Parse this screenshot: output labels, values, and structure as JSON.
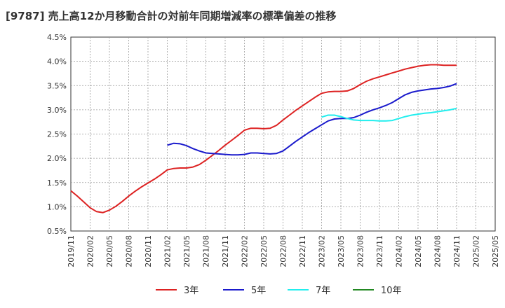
{
  "chart_data": {
    "type": "line",
    "title": "[9787]  売上高12か月移動合計の対前年同期増減率の標準偏差の推移",
    "xlabel": "",
    "ylabel": "",
    "ylim": [
      0.5,
      4.5
    ],
    "yticks": [
      "0.5%",
      "1.0%",
      "1.5%",
      "2.0%",
      "2.5%",
      "3.0%",
      "3.5%",
      "4.0%",
      "4.5%"
    ],
    "xticks": [
      "2019/11",
      "2020/02",
      "2020/05",
      "2020/08",
      "2020/11",
      "2021/02",
      "2021/05",
      "2021/08",
      "2021/11",
      "2022/02",
      "2022/05",
      "2022/08",
      "2022/11",
      "2023/02",
      "2023/05",
      "2023/08",
      "2023/11",
      "2024/02",
      "2024/05",
      "2024/08",
      "2024/11",
      "2025/02",
      "2025/05"
    ],
    "grid": true,
    "legend_position": "bottom",
    "series": [
      {
        "name": "3年",
        "color": "#dd2222",
        "start": "2019/11",
        "values": [
          1.33,
          1.22,
          1.1,
          0.98,
          0.9,
          0.88,
          0.93,
          1.01,
          1.11,
          1.22,
          1.32,
          1.41,
          1.49,
          1.57,
          1.66,
          1.76,
          1.79,
          1.8,
          1.8,
          1.82,
          1.87,
          1.96,
          2.06,
          2.16,
          2.27,
          2.37,
          2.47,
          2.58,
          2.62,
          2.62,
          2.61,
          2.62,
          2.68,
          2.79,
          2.89,
          2.99,
          3.08,
          3.17,
          3.26,
          3.34,
          3.37,
          3.38,
          3.38,
          3.39,
          3.44,
          3.52,
          3.59,
          3.64,
          3.68,
          3.72,
          3.76,
          3.8,
          3.84,
          3.87,
          3.9,
          3.92,
          3.93,
          3.93,
          3.92,
          3.92,
          3.92
        ]
      },
      {
        "name": "5年",
        "color": "#1a1acc",
        "start": "2021/02",
        "values": [
          2.27,
          2.31,
          2.3,
          2.26,
          2.2,
          2.15,
          2.11,
          2.1,
          2.09,
          2.08,
          2.07,
          2.07,
          2.08,
          2.11,
          2.11,
          2.1,
          2.09,
          2.1,
          2.15,
          2.25,
          2.35,
          2.44,
          2.53,
          2.61,
          2.69,
          2.77,
          2.81,
          2.82,
          2.82,
          2.84,
          2.89,
          2.95,
          3.0,
          3.04,
          3.09,
          3.15,
          3.23,
          3.31,
          3.36,
          3.39,
          3.41,
          3.43,
          3.44,
          3.46,
          3.49,
          3.54
        ]
      },
      {
        "name": "7年",
        "color": "#22eeee",
        "start": "2023/02",
        "values": [
          2.85,
          2.89,
          2.89,
          2.86,
          2.82,
          2.79,
          2.78,
          2.78,
          2.78,
          2.77,
          2.77,
          2.78,
          2.82,
          2.86,
          2.89,
          2.91,
          2.93,
          2.94,
          2.96,
          2.98,
          3.0,
          3.03
        ]
      },
      {
        "name": "10年",
        "color": "#228822",
        "start": "2024/11",
        "values": []
      }
    ]
  }
}
